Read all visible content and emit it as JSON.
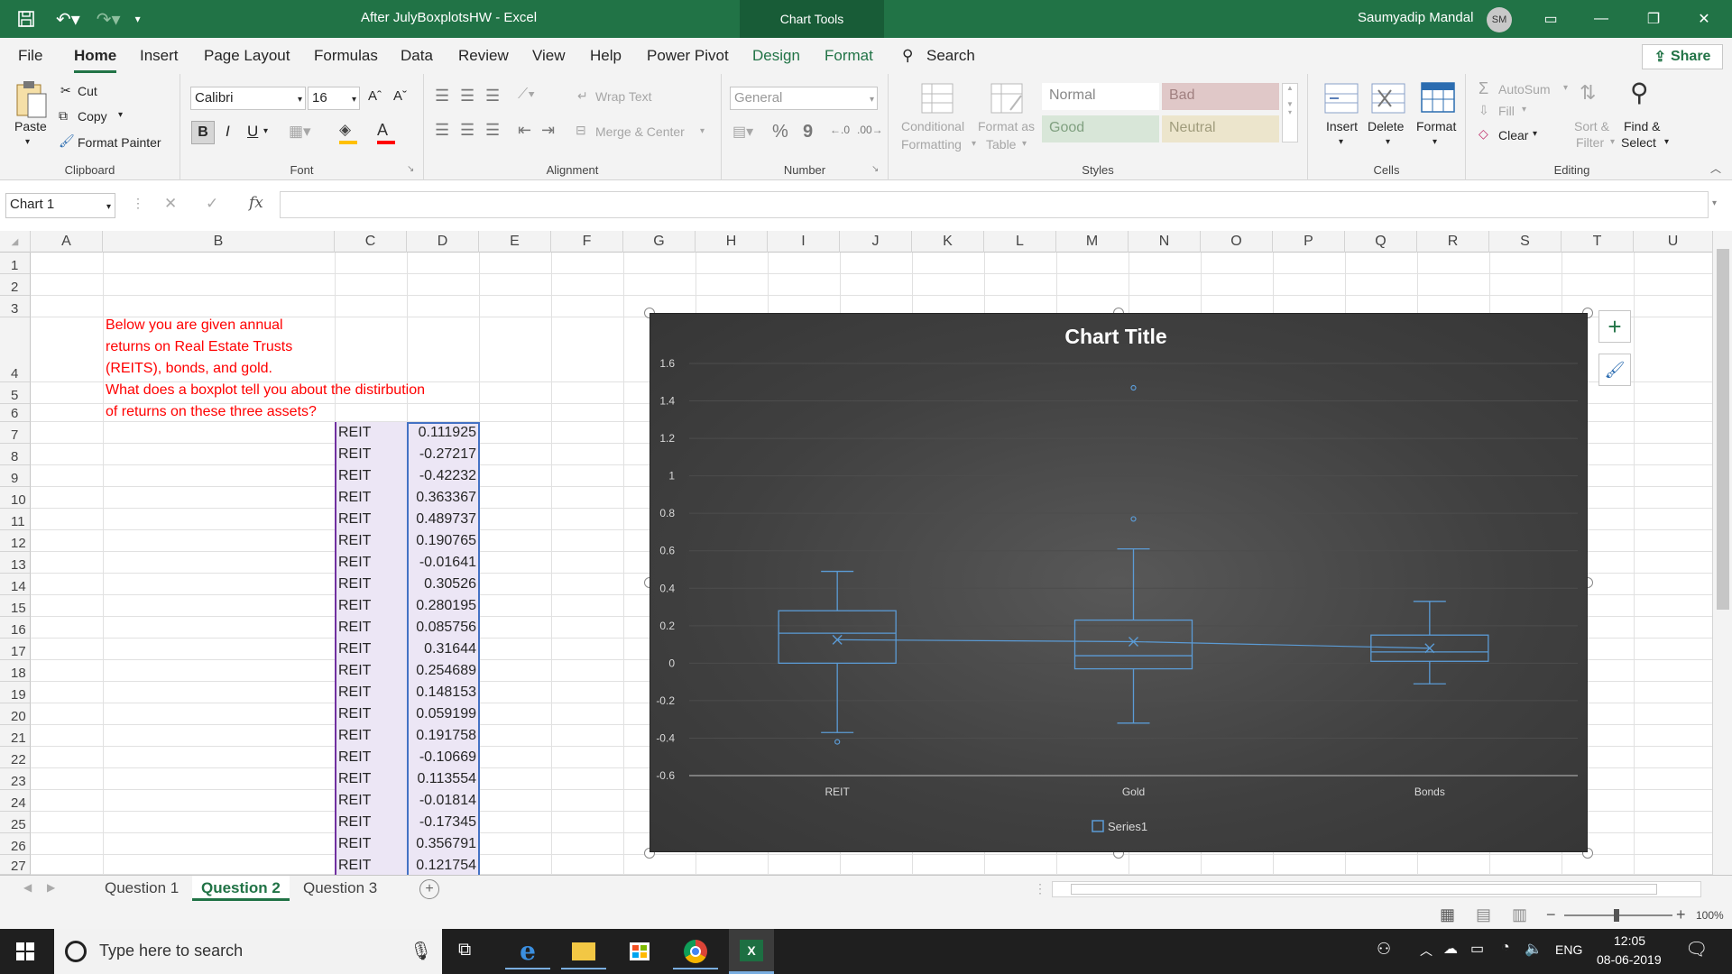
{
  "window": {
    "title": "After JulyBoxplotsHW  -  Excel",
    "context_tab": "Chart Tools",
    "user_name": "Saumyadip Mandal",
    "user_initials": "SM"
  },
  "menu": {
    "tabs": [
      "File",
      "Home",
      "Insert",
      "Page Layout",
      "Formulas",
      "Data",
      "Review",
      "View",
      "Help",
      "Power Pivot",
      "Design",
      "Format"
    ],
    "search": "Search",
    "share": "Share"
  },
  "ribbon": {
    "clipboard": {
      "paste": "Paste",
      "cut": "Cut",
      "copy": "Copy",
      "format_painter": "Format Painter",
      "label": "Clipboard"
    },
    "font": {
      "name": "Calibri",
      "size": "16",
      "bold": "B",
      "italic": "I",
      "underline": "U",
      "label": "Font"
    },
    "alignment": {
      "wrap": "Wrap Text",
      "merge": "Merge & Center",
      "label": "Alignment"
    },
    "number": {
      "format": "General",
      "percent": "%",
      "comma": "9",
      "label": "Number"
    },
    "styles": {
      "conditional": "Conditional",
      "formatting": "Formatting",
      "format_as": "Format as",
      "table": "Table",
      "normal": "Normal",
      "bad": "Bad",
      "good": "Good",
      "neutral": "Neutral",
      "label": "Styles"
    },
    "cells": {
      "insert": "Insert",
      "delete": "Delete",
      "format": "Format",
      "label": "Cells"
    },
    "editing": {
      "autosum": "AutoSum",
      "fill": "Fill",
      "clear": "Clear",
      "sort": "Sort &",
      "filter": "Filter",
      "find": "Find &",
      "select": "Select",
      "label": "Editing"
    }
  },
  "formula_bar": {
    "name_box": "Chart 1",
    "fx": "fx",
    "value": ""
  },
  "grid": {
    "columns": [
      "A",
      "B",
      "C",
      "D",
      "E",
      "F",
      "G",
      "H",
      "I",
      "J",
      "K",
      "L",
      "M",
      "N",
      "O",
      "P",
      "Q",
      "R",
      "S",
      "T",
      "U"
    ],
    "rows": [
      "1",
      "2",
      "3",
      "4",
      "5",
      "6",
      "7",
      "8",
      "9",
      "10",
      "11",
      "12",
      "13",
      "14",
      "15",
      "16",
      "17",
      "18",
      "19",
      "20",
      "21",
      "22",
      "23",
      "24",
      "25",
      "26",
      "27"
    ],
    "instructions": [
      "Below you are given annual",
      "returns on Real Estate Trusts",
      "(REITS), bonds, and gold.",
      "What does a boxplot tell you about the distirbution",
      "of returns on these three assets?"
    ],
    "data_rows": [
      [
        "REIT",
        "0.111925"
      ],
      [
        "REIT",
        "-0.27217"
      ],
      [
        "REIT",
        "-0.42232"
      ],
      [
        "REIT",
        "0.363367"
      ],
      [
        "REIT",
        "0.489737"
      ],
      [
        "REIT",
        "0.190765"
      ],
      [
        "REIT",
        "-0.01641"
      ],
      [
        "REIT",
        "0.30526"
      ],
      [
        "REIT",
        "0.280195"
      ],
      [
        "REIT",
        "0.085756"
      ],
      [
        "REIT",
        "0.31644"
      ],
      [
        "REIT",
        "0.254689"
      ],
      [
        "REIT",
        "0.148153"
      ],
      [
        "REIT",
        "0.059199"
      ],
      [
        "REIT",
        "0.191758"
      ],
      [
        "REIT",
        "-0.10669"
      ],
      [
        "REIT",
        "0.113554"
      ],
      [
        "REIT",
        "-0.01814"
      ],
      [
        "REIT",
        "-0.17345"
      ],
      [
        "REIT",
        "0.356791"
      ],
      [
        "REIT",
        "0.121754"
      ]
    ]
  },
  "chart_data": {
    "type": "box",
    "title": "Chart Title",
    "categories": [
      "REIT",
      "Gold",
      "Bonds"
    ],
    "legend": [
      "Series1"
    ],
    "legend_position": "bottom",
    "ylim": [
      -0.6,
      1.6
    ],
    "yticks": [
      "1.6",
      "1.4",
      "1.2",
      "1",
      "0.8",
      "0.6",
      "0.4",
      "0.2",
      "0",
      "-0.2",
      "-0.4",
      "-0.6"
    ],
    "boxes": [
      {
        "category": "REIT",
        "min": -0.37,
        "q1": 0.0,
        "median": 0.16,
        "q3": 0.28,
        "max": 0.49,
        "mean": 0.125,
        "outliers": [
          -0.42
        ]
      },
      {
        "category": "Gold",
        "min": -0.32,
        "q1": -0.03,
        "median": 0.04,
        "q3": 0.23,
        "max": 0.61,
        "mean": 0.115,
        "outliers": [
          0.77,
          1.47
        ]
      },
      {
        "category": "Bonds",
        "min": -0.11,
        "q1": 0.01,
        "median": 0.06,
        "q3": 0.15,
        "max": 0.33,
        "mean": 0.08,
        "outliers": []
      }
    ],
    "colors": {
      "box": "#5b9bd5",
      "background": "#404040"
    }
  },
  "sheets": {
    "tabs": [
      "Question 1",
      "Question 2",
      "Question 3"
    ],
    "active": "Question 2"
  },
  "status": {
    "zoom": "100%"
  },
  "taskbar": {
    "search": "Type here to search",
    "lang": "ENG",
    "time": "12:05",
    "date": "08-06-2019"
  }
}
